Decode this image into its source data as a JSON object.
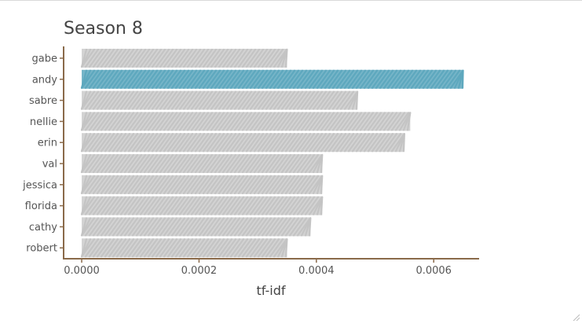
{
  "chart_data": {
    "type": "bar",
    "orientation": "horizontal",
    "title": "Season 8",
    "xlabel": "tf-idf",
    "ylabel": "",
    "categories": [
      "gabe",
      "andy",
      "sabre",
      "nellie",
      "erin",
      "val",
      "jessica",
      "florida",
      "cathy",
      "robert"
    ],
    "values": [
      0.00035,
      0.00065,
      0.00047,
      0.00056,
      0.00055,
      0.00041,
      0.00041,
      0.00041,
      0.00039,
      0.00035
    ],
    "highlight": "andy",
    "xlim": [
      0,
      0.00068
    ],
    "xticks": [
      "0.0000",
      "0.0002",
      "0.0004",
      "0.0006"
    ],
    "xtick_values": [
      0,
      0.0002,
      0.0004,
      0.0006
    ],
    "grid": false,
    "legend": "none",
    "colors": {
      "bar": "#c4c4c4",
      "highlight": "#5ea8be",
      "axis": "#8a6a4a",
      "text": "#555555"
    }
  }
}
